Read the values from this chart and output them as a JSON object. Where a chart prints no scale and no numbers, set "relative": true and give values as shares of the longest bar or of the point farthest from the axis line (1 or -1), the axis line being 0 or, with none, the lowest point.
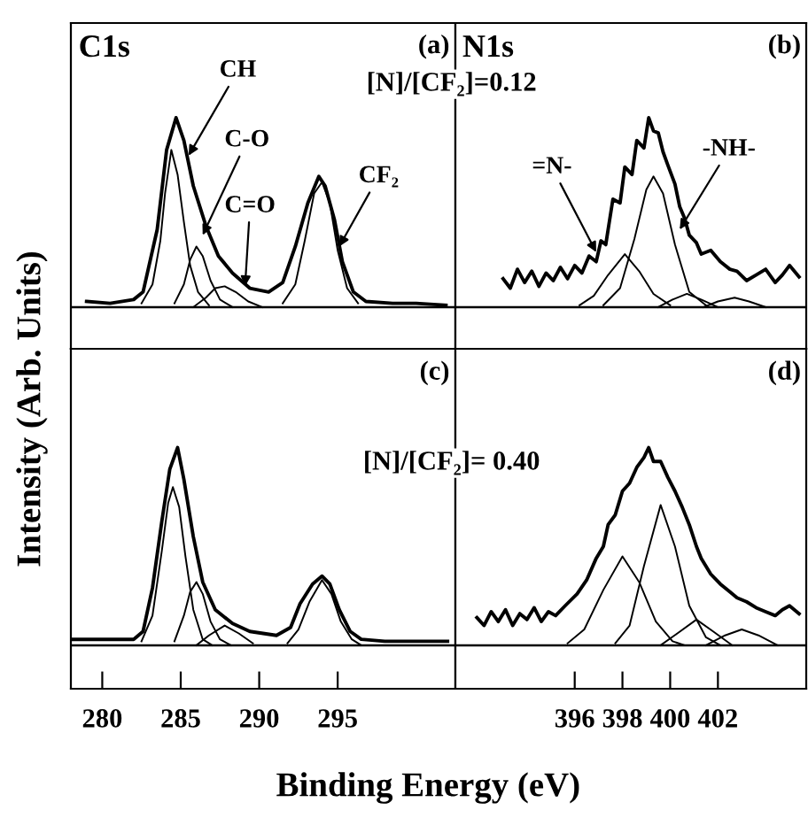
{
  "chart_data": [
    {
      "type": "line",
      "relative": true,
      "title": "C1s",
      "ylabel": "Intensity (Arb. Units)",
      "xlim": [
        278,
        302.5
      ],
      "tick_labels": false,
      "grid": false,
      "legend": false,
      "annotations": [
        "(a)",
        "[N]/[CF₂]=0.12",
        {
          "text": "CH",
          "x": 285.5,
          "y": 0.8
        },
        {
          "text": "C-O",
          "x": 286.4,
          "y": 0.38
        },
        {
          "text": "C=O",
          "x": 289.1,
          "y": 0.11
        },
        {
          "text": "CF₂",
          "x": 295.1,
          "y": 0.32
        }
      ],
      "series": [
        {
          "color": "#000000",
          "x": [
            279,
            280.5,
            282,
            282.6,
            283.5,
            284.1,
            284.7,
            285.2,
            285.8,
            286.6,
            287.4,
            288.3,
            289.4,
            290.6,
            291.5,
            292.3,
            293.1,
            293.8,
            294.2,
            294.8,
            295.3,
            296,
            296.8,
            298.5,
            300,
            301.9
          ],
          "values": [
            0.03,
            0.02,
            0.04,
            0.08,
            0.41,
            0.83,
            1.0,
            0.88,
            0.64,
            0.43,
            0.27,
            0.18,
            0.1,
            0.08,
            0.13,
            0.32,
            0.55,
            0.69,
            0.64,
            0.46,
            0.24,
            0.08,
            0.03,
            0.02,
            0.02,
            0.01
          ]
        },
        {
          "color": "#000000",
          "x": [
            282.5,
            283.2,
            283.7,
            284.0,
            284.4,
            284.8,
            285.2,
            285.6,
            286.1,
            286.8
          ],
          "values": [
            0.02,
            0.12,
            0.35,
            0.6,
            0.83,
            0.7,
            0.45,
            0.22,
            0.08,
            0.01
          ]
        },
        {
          "color": "#000000",
          "x": [
            284.6,
            285.2,
            285.6,
            286.0,
            286.4,
            286.9,
            287.5,
            288.3
          ],
          "values": [
            0.02,
            0.12,
            0.25,
            0.32,
            0.27,
            0.14,
            0.04,
            0.0
          ]
        },
        {
          "color": "#000000",
          "x": [
            285.8,
            286.6,
            287.2,
            287.8,
            288.5,
            289.3,
            290.2
          ],
          "values": [
            0.0,
            0.05,
            0.1,
            0.11,
            0.08,
            0.03,
            0.0
          ]
        },
        {
          "color": "#000000",
          "x": [
            291.5,
            292.3,
            292.9,
            293.5,
            294.0,
            294.5,
            295.0,
            295.6,
            296.3
          ],
          "values": [
            0.02,
            0.12,
            0.35,
            0.6,
            0.66,
            0.55,
            0.3,
            0.1,
            0.02
          ]
        }
      ]
    },
    {
      "type": "line",
      "relative": true,
      "title": "N1s",
      "xlim": [
        391,
        405.7
      ],
      "tick_labels": false,
      "grid": false,
      "legend": false,
      "annotations": [
        "(b)",
        {
          "text": "=N-",
          "x": 396.9,
          "y": 0.29
        },
        {
          "text": "-NH-",
          "x": 400.4,
          "y": 0.41
        }
      ],
      "series": [
        {
          "color": "#000000",
          "x": [
            393.0,
            393.3,
            393.6,
            393.9,
            394.2,
            394.5,
            394.8,
            395.1,
            395.4,
            395.7,
            396.0,
            396.3,
            396.6,
            396.9,
            397.1,
            397.3,
            397.6,
            397.9,
            398.1,
            398.4,
            398.6,
            398.9,
            399.1,
            399.3,
            399.5,
            399.7,
            399.9,
            400.2,
            400.4,
            400.6,
            400.8,
            401.1,
            401.3,
            401.7,
            402.1,
            402.5,
            402.8,
            403.2,
            403.6,
            404.0,
            404.4,
            404.7,
            405.0,
            405.4
          ],
          "values": [
            0.15,
            0.1,
            0.2,
            0.13,
            0.19,
            0.11,
            0.18,
            0.14,
            0.21,
            0.15,
            0.22,
            0.18,
            0.27,
            0.24,
            0.35,
            0.33,
            0.57,
            0.55,
            0.74,
            0.7,
            0.88,
            0.84,
            1.0,
            0.93,
            0.92,
            0.82,
            0.75,
            0.65,
            0.53,
            0.47,
            0.38,
            0.34,
            0.28,
            0.3,
            0.24,
            0.2,
            0.19,
            0.14,
            0.17,
            0.2,
            0.13,
            0.17,
            0.22,
            0.16
          ]
        },
        {
          "color": "#000000",
          "x": [
            396.2,
            396.8,
            397.4,
            398.1,
            398.7,
            399.3,
            400.0
          ],
          "values": [
            0.01,
            0.06,
            0.17,
            0.28,
            0.19,
            0.07,
            0.01
          ]
        },
        {
          "color": "#000000",
          "x": [
            397.2,
            397.9,
            398.5,
            399.0,
            399.3,
            399.7,
            400.2,
            400.8,
            401.5
          ],
          "values": [
            0.01,
            0.1,
            0.36,
            0.62,
            0.69,
            0.6,
            0.33,
            0.08,
            0.01
          ]
        },
        {
          "color": "#000000",
          "x": [
            399.5,
            400.1,
            400.7,
            401.3,
            402.0
          ],
          "values": [
            0.0,
            0.04,
            0.07,
            0.04,
            0.0
          ]
        },
        {
          "color": "#000000",
          "x": [
            401.4,
            402.0,
            402.7,
            403.3,
            404.0
          ],
          "values": [
            0.0,
            0.03,
            0.05,
            0.03,
            0.0
          ]
        }
      ]
    },
    {
      "type": "line",
      "relative": true,
      "xlabel": "Binding Energy (eV)",
      "xlim": [
        278,
        302.5
      ],
      "xticks": [
        280,
        285,
        290,
        295
      ],
      "tick_labels": "x",
      "grid": false,
      "legend": false,
      "annotations": [
        "(c)",
        "[N]/[CF₂]= 0.40"
      ],
      "series": [
        {
          "color": "#000000",
          "x": [
            278.1,
            280,
            282,
            282.6,
            283.2,
            283.8,
            284.3,
            284.8,
            285.2,
            285.8,
            286.4,
            287.2,
            288.3,
            289.4,
            291.1,
            292.0,
            292.6,
            293.4,
            294.0,
            294.5,
            295.1,
            295.8,
            296.5,
            298,
            300,
            302
          ],
          "values": [
            0.03,
            0.03,
            0.03,
            0.07,
            0.29,
            0.63,
            0.89,
            1.0,
            0.84,
            0.55,
            0.32,
            0.18,
            0.11,
            0.07,
            0.05,
            0.09,
            0.21,
            0.31,
            0.35,
            0.31,
            0.18,
            0.07,
            0.03,
            0.02,
            0.02,
            0.02
          ]
        },
        {
          "color": "#000000",
          "x": [
            282.5,
            283.2,
            283.8,
            284.2,
            284.5,
            284.9,
            285.3,
            285.8,
            286.4,
            287.0
          ],
          "values": [
            0.02,
            0.15,
            0.48,
            0.72,
            0.8,
            0.7,
            0.45,
            0.18,
            0.03,
            0.0
          ]
        },
        {
          "color": "#000000",
          "x": [
            284.6,
            285.2,
            285.6,
            286.0,
            286.4,
            286.9,
            287.5,
            288.2
          ],
          "values": [
            0.02,
            0.15,
            0.27,
            0.32,
            0.26,
            0.12,
            0.03,
            0.0
          ]
        },
        {
          "color": "#000000",
          "x": [
            286.0,
            286.8,
            287.8,
            288.7,
            289.6
          ],
          "values": [
            0.0,
            0.05,
            0.1,
            0.06,
            0.01
          ]
        },
        {
          "color": "#000000",
          "x": [
            291.8,
            292.5,
            293.2,
            294.0,
            294.6,
            295.2,
            295.9,
            296.5
          ],
          "values": [
            0.01,
            0.08,
            0.22,
            0.33,
            0.26,
            0.12,
            0.03,
            0.0
          ]
        }
      ]
    },
    {
      "type": "line",
      "relative": true,
      "xlim": [
        391,
        405.7
      ],
      "xticks": [
        396,
        398,
        400,
        402
      ],
      "tick_labels": "x",
      "grid": false,
      "legend": false,
      "annotations": [
        "(d)"
      ],
      "series": [
        {
          "color": "#000000",
          "x": [
            391.9,
            392.2,
            392.5,
            392.8,
            393.1,
            393.4,
            393.7,
            394.0,
            394.3,
            394.6,
            394.9,
            395.2,
            395.6,
            396.1,
            396.5,
            396.9,
            397.2,
            397.4,
            397.7,
            398.0,
            398.3,
            398.6,
            398.9,
            399.1,
            399.3,
            399.6,
            399.9,
            400.2,
            400.5,
            400.8,
            401.1,
            401.3,
            401.7,
            402.1,
            402.5,
            402.8,
            403.2,
            403.6,
            404.0,
            404.4,
            404.7,
            405.0,
            405.4
          ],
          "values": [
            0.14,
            0.1,
            0.17,
            0.12,
            0.18,
            0.1,
            0.16,
            0.13,
            0.19,
            0.12,
            0.17,
            0.15,
            0.2,
            0.26,
            0.33,
            0.44,
            0.5,
            0.61,
            0.66,
            0.78,
            0.82,
            0.9,
            0.95,
            1.0,
            0.93,
            0.93,
            0.85,
            0.78,
            0.7,
            0.61,
            0.5,
            0.44,
            0.36,
            0.31,
            0.27,
            0.24,
            0.22,
            0.19,
            0.17,
            0.15,
            0.18,
            0.2,
            0.16
          ]
        },
        {
          "color": "#000000",
          "x": [
            395.7,
            396.4,
            397.2,
            398.0,
            398.7,
            399.4,
            400.1,
            400.6
          ],
          "values": [
            0.01,
            0.08,
            0.28,
            0.45,
            0.32,
            0.12,
            0.02,
            0.0
          ]
        },
        {
          "color": "#000000",
          "x": [
            397.7,
            398.3,
            398.9,
            399.6,
            400.2,
            400.8,
            401.5,
            402.1
          ],
          "values": [
            0.01,
            0.1,
            0.4,
            0.71,
            0.5,
            0.2,
            0.04,
            0.0
          ]
        },
        {
          "color": "#000000",
          "x": [
            399.6,
            400.3,
            401.1,
            401.8,
            402.6
          ],
          "values": [
            0.0,
            0.06,
            0.13,
            0.07,
            0.0
          ]
        },
        {
          "color": "#000000",
          "x": [
            401.5,
            402.3,
            403.0,
            403.7,
            404.5
          ],
          "values": [
            0.0,
            0.05,
            0.08,
            0.05,
            0.0
          ]
        }
      ]
    }
  ]
}
